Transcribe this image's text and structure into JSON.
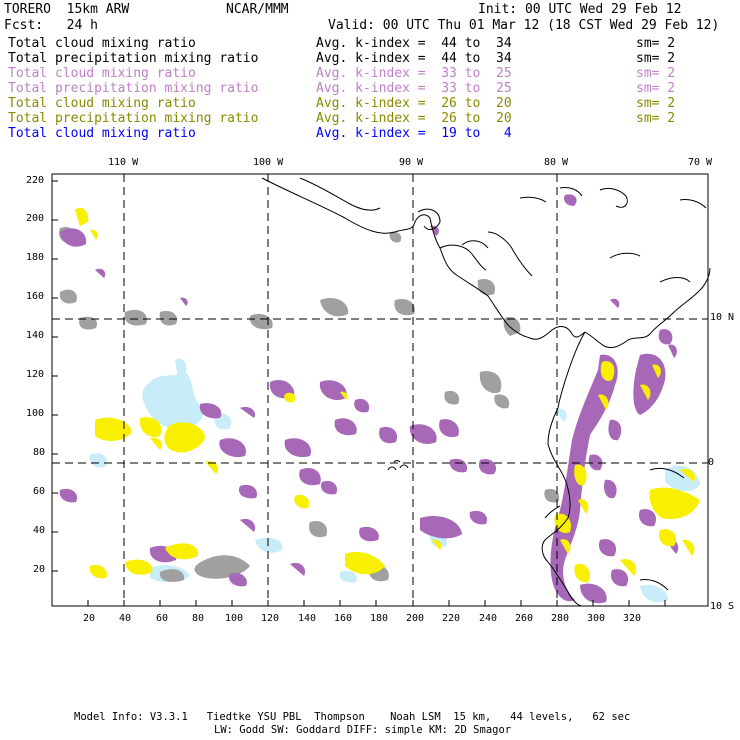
{
  "header": {
    "line1_left": "TORERO  15km ARW",
    "line1_mid": "NCAR/MMM",
    "line1_right": "Init: 00 UTC Wed 29 Feb 12",
    "line2_left": "Fcst:   24 h",
    "line2_right": "Valid: 00 UTC Thu 01 Mar 12 (18 CST Wed 29 Feb 12)"
  },
  "legend": [
    {
      "field": "Total cloud mixing ratio",
      "index": "Avg. k-index =  44 to  34",
      "sm": "sm= 2",
      "color": "#000000"
    },
    {
      "field": "Total precipitation mixing ratio",
      "index": "Avg. k-index =  44 to  34",
      "sm": "sm= 2",
      "color": "#000000"
    },
    {
      "field": "Total cloud mixing ratio",
      "index": "Avg. k-index =  33 to  25",
      "sm": "sm= 2",
      "color": "#c080c8"
    },
    {
      "field": "Total precipitation mixing ratio",
      "index": "Avg. k-index =  33 to  25",
      "sm": "sm= 2",
      "color": "#c080c8"
    },
    {
      "field": "Total cloud mixing ratio",
      "index": "Avg. k-index =  26 to  20",
      "sm": "sm= 2",
      "color": "#8a8a00"
    },
    {
      "field": "Total precipitation mixing ratio",
      "index": "Avg. k-index =  26 to  20",
      "sm": "sm= 2",
      "color": "#8a8a00"
    },
    {
      "field": "Total cloud mixing ratio",
      "index": "Avg. k-index =  19 to   4",
      "sm": "",
      "color": "#0000ff"
    }
  ],
  "map": {
    "lon_labels": [
      "110 W",
      "100 W",
      "90 W",
      "80 W",
      "70 W"
    ],
    "lat_labels": [
      "10 N",
      "0",
      "10 S"
    ],
    "x_ticks": [
      "20",
      "40",
      "60",
      "80",
      "100",
      "120",
      "140",
      "160",
      "180",
      "200",
      "220",
      "240",
      "260",
      "280",
      "300",
      "320"
    ],
    "y_ticks": [
      "220",
      "200",
      "180",
      "160",
      "140",
      "120",
      "100",
      "80",
      "60",
      "40",
      "20"
    ],
    "colors": {
      "gray": "#a0a0a0",
      "purple": "#a868b8",
      "yellow": "#f8f000",
      "lightblue": "#c8ecf8"
    }
  },
  "footer": {
    "line1": "Model Info: V3.3.1   Tiedtke YSU PBL  Thompson    Noah LSM  15 km,   44 levels,   62 sec",
    "line2": "LW: Godd SW: Goddard DIFF: simple KM: 2D Smagor"
  }
}
